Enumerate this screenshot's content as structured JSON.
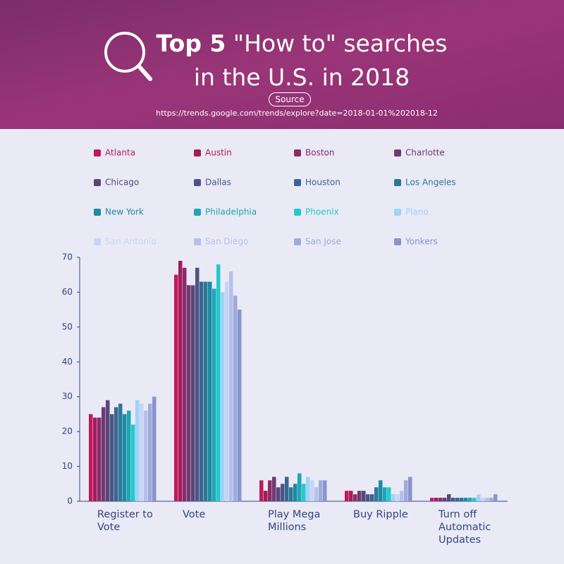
{
  "chart_data": {
    "type": "bar",
    "title_bold": "Top 5",
    "title": "\"How to\" searches in the U.S. in 2018",
    "source_label": "Source",
    "source_url": "https://trends.google.com/trends/explore?date=2018-01-01%202018-12",
    "categories": [
      "Register to Vote",
      "Vote",
      "Play Mega Millions",
      "Buy Ripple",
      "Turn off Automatic Updates"
    ],
    "ylim": [
      0,
      70
    ],
    "yticks": [
      0,
      10,
      20,
      30,
      40,
      50,
      60,
      70
    ],
    "series": [
      {
        "name": "Atlanta",
        "color": "#c2185b",
        "values": [
          25,
          65,
          6,
          3,
          1
        ]
      },
      {
        "name": "Austin",
        "color": "#a51c5a",
        "values": [
          24,
          69,
          3,
          3,
          1
        ]
      },
      {
        "name": "Boston",
        "color": "#8c2a6a",
        "values": [
          24,
          67,
          6,
          2,
          1
        ]
      },
      {
        "name": "Charlotte",
        "color": "#6f3a72",
        "values": [
          27,
          62,
          7,
          3,
          1
        ]
      },
      {
        "name": "Chicago",
        "color": "#594679",
        "values": [
          29,
          62,
          4,
          3,
          2
        ]
      },
      {
        "name": "Dallas",
        "color": "#4a5587",
        "values": [
          25,
          67,
          5,
          2,
          1
        ]
      },
      {
        "name": "Houston",
        "color": "#3b6590",
        "values": [
          27,
          63,
          7,
          2,
          1
        ]
      },
      {
        "name": "Los Angeles",
        "color": "#2b7898",
        "values": [
          28,
          63,
          4,
          4,
          1
        ]
      },
      {
        "name": "New York",
        "color": "#1c8aa2",
        "values": [
          25,
          63,
          5,
          6,
          1
        ]
      },
      {
        "name": "Philadelphia",
        "color": "#1fa5b5",
        "values": [
          26,
          61,
          8,
          4,
          1
        ]
      },
      {
        "name": "Phoenix",
        "color": "#22cbcb",
        "values": [
          22,
          68,
          5,
          4,
          1
        ]
      },
      {
        "name": "Plano",
        "color": "#9fd2f8",
        "values": [
          29,
          60,
          7,
          2,
          2
        ]
      },
      {
        "name": "San Antonio",
        "color": "#c8d5f5",
        "values": [
          28,
          63,
          6,
          2,
          1
        ]
      },
      {
        "name": "San Diego",
        "color": "#b7c0ec",
        "values": [
          26,
          66,
          4,
          3,
          1
        ]
      },
      {
        "name": "San Jose",
        "color": "#9eaad8",
        "values": [
          28,
          59,
          6,
          6,
          1
        ]
      },
      {
        "name": "Yonkers",
        "color": "#8a94cc",
        "values": [
          30,
          55,
          6,
          7,
          2
        ]
      }
    ]
  }
}
